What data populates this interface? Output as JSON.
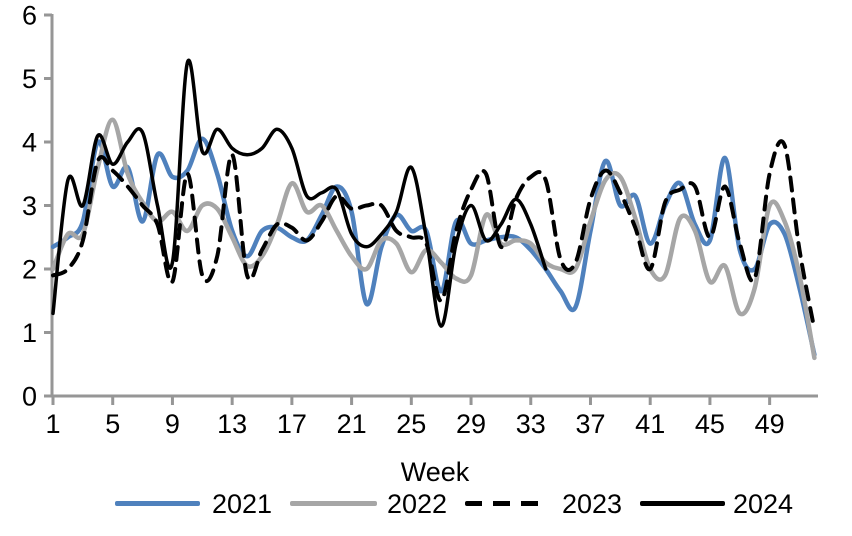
{
  "chart_data": {
    "type": "line",
    "title": "",
    "xlabel": "Week",
    "ylabel": "",
    "ylim": [
      0,
      6
    ],
    "x_range": [
      1,
      52
    ],
    "y_ticks": [
      0,
      1,
      2,
      3,
      4,
      5,
      6
    ],
    "x_ticks": [
      1,
      5,
      9,
      13,
      17,
      21,
      25,
      29,
      33,
      37,
      41,
      45,
      49
    ],
    "grid": false,
    "legend_position": "bottom",
    "axis_color": "#969696",
    "smoothed_lines": true,
    "series": [
      {
        "name": "2021",
        "color": "#4F81BD",
        "style": "solid",
        "start_week": 1,
        "values": [
          2.35,
          2.5,
          2.75,
          4.0,
          3.3,
          3.6,
          2.75,
          3.8,
          3.45,
          3.55,
          4.05,
          3.5,
          2.6,
          2.2,
          2.6,
          2.65,
          2.5,
          2.45,
          2.85,
          3.3,
          2.9,
          1.45,
          2.35,
          2.85,
          2.6,
          2.6,
          1.65,
          2.75,
          2.4,
          2.45,
          2.5,
          2.5,
          2.3,
          2.0,
          1.65,
          1.4,
          2.6,
          3.7,
          3.0,
          3.15,
          2.4,
          3.0,
          3.35,
          2.7,
          2.45,
          3.75,
          2.3,
          2.0,
          2.7,
          2.55,
          1.7,
          0.65
        ]
      },
      {
        "name": "2022",
        "color": "#A6A6A6",
        "style": "solid",
        "start_week": 1,
        "values": [
          2.0,
          2.55,
          2.55,
          3.6,
          4.35,
          3.5,
          3.05,
          2.75,
          2.9,
          2.6,
          3.0,
          2.95,
          2.5,
          2.05,
          2.2,
          2.7,
          3.35,
          2.9,
          3.0,
          2.6,
          2.2,
          2.0,
          2.45,
          2.4,
          1.95,
          2.3,
          2.1,
          1.85,
          1.9,
          2.85,
          2.4,
          2.45,
          2.4,
          2.1,
          2.0,
          2.0,
          2.75,
          3.4,
          3.45,
          2.8,
          2.0,
          1.9,
          2.8,
          2.6,
          1.8,
          2.05,
          1.3,
          1.7,
          3.0,
          2.75,
          1.9,
          0.6
        ]
      },
      {
        "name": "2023",
        "color": "#000000",
        "style": "dashed",
        "start_week": 1,
        "values": [
          1.9,
          2.0,
          2.45,
          3.7,
          3.55,
          3.3,
          3.0,
          2.7,
          1.8,
          3.5,
          1.9,
          2.2,
          3.8,
          1.9,
          2.3,
          2.7,
          2.65,
          2.45,
          2.75,
          3.15,
          2.95,
          3.0,
          3.0,
          2.6,
          2.5,
          2.4,
          1.5,
          2.6,
          3.25,
          3.5,
          2.35,
          3.1,
          3.45,
          3.4,
          2.15,
          2.1,
          3.1,
          3.55,
          3.2,
          2.65,
          2.0,
          3.05,
          3.25,
          3.3,
          2.5,
          3.3,
          2.4,
          1.85,
          3.5,
          3.95,
          2.3,
          1.05
        ]
      },
      {
        "name": "2024",
        "color": "#000000",
        "style": "solid",
        "start_week": 1,
        "values": [
          1.3,
          3.4,
          3.0,
          4.1,
          3.65,
          4.0,
          4.15,
          3.0,
          2.1,
          5.25,
          3.85,
          4.2,
          3.9,
          3.8,
          3.9,
          4.2,
          3.9,
          3.15,
          3.2,
          3.25,
          2.55,
          2.35,
          2.55,
          2.9,
          3.6,
          2.5,
          1.1,
          2.4,
          3.0,
          2.45,
          2.7,
          3.1,
          2.7,
          2.0
        ]
      }
    ]
  }
}
